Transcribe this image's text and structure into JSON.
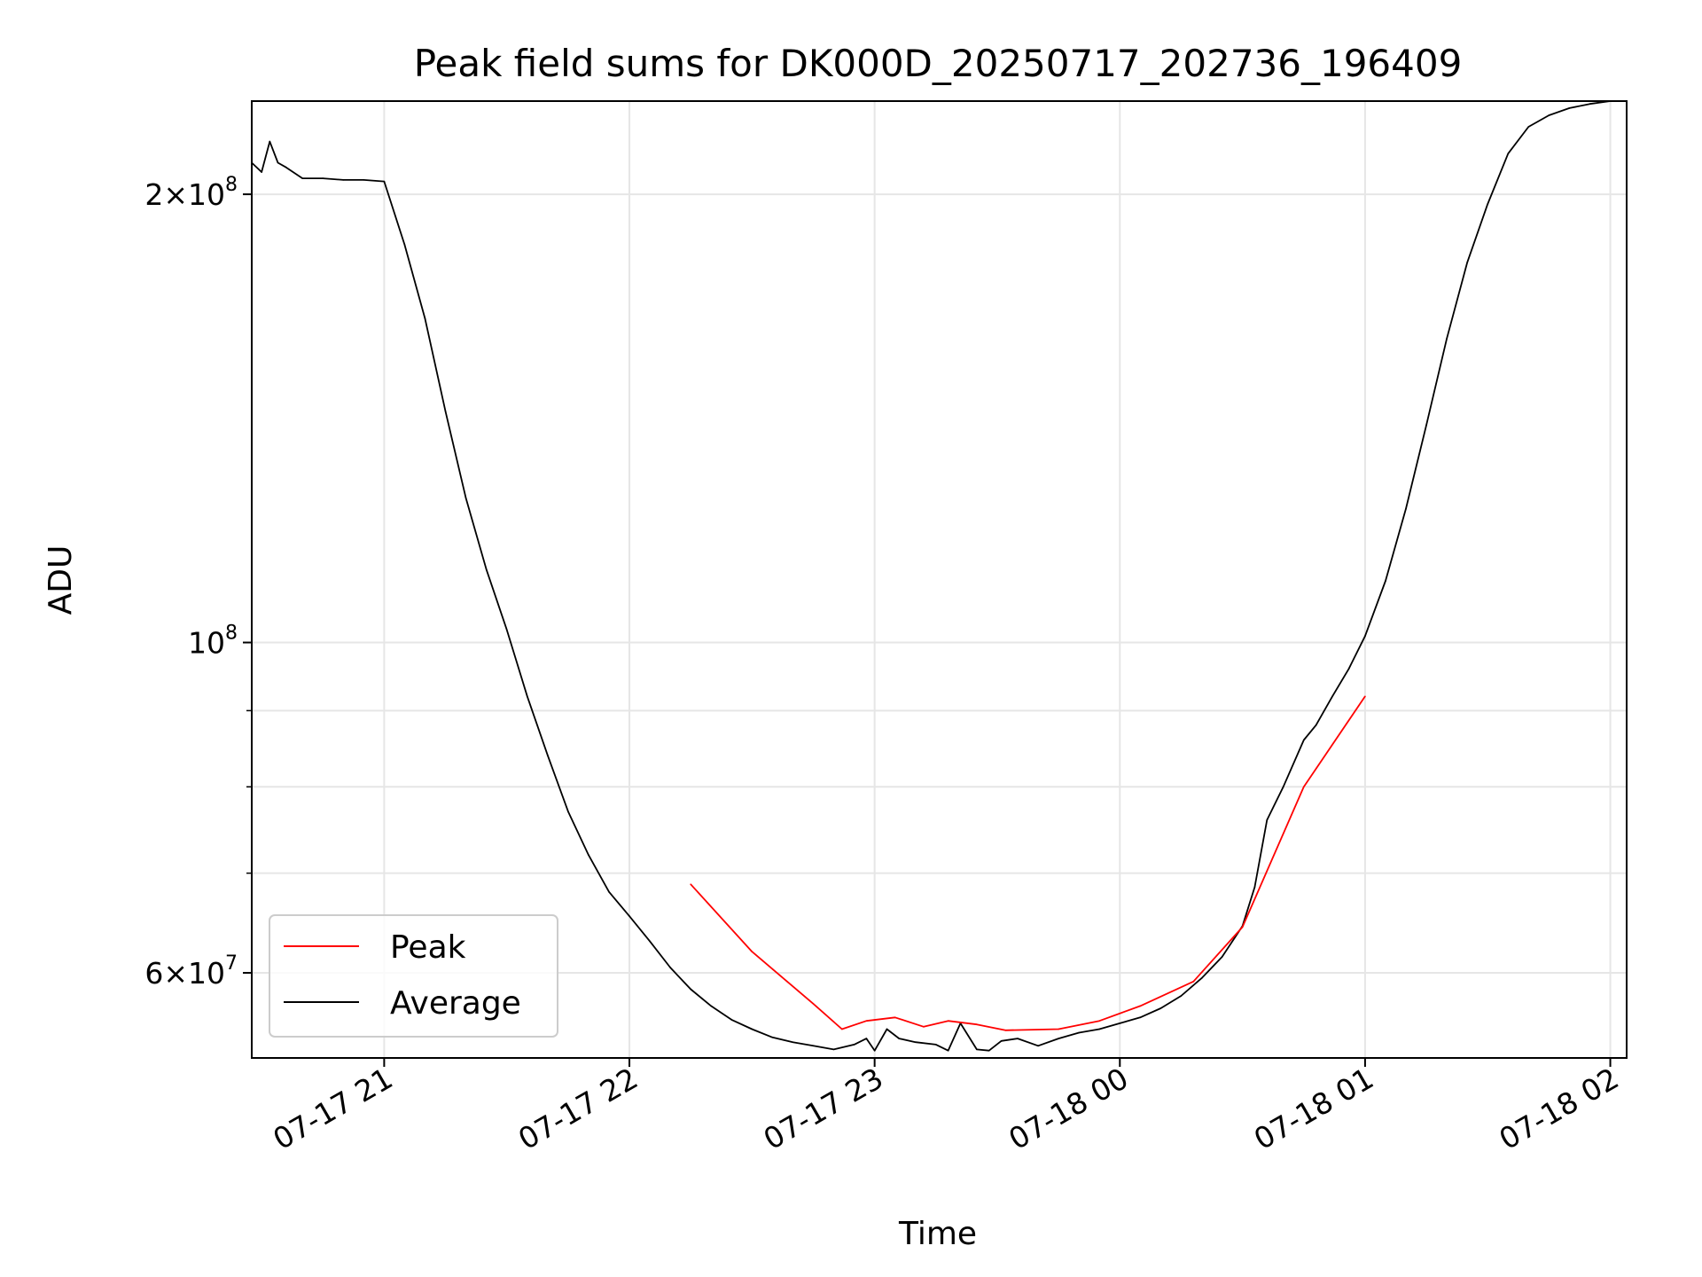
{
  "chart_data": {
    "type": "line",
    "title": "Peak field sums for DK000D_20250717_202736_196409",
    "xlabel": "Time",
    "ylabel": "ADU",
    "yscale": "log",
    "grid": true,
    "legend_position": "lower-left",
    "xlim": [
      "2025-07-17T20:27:36",
      "2025-07-18T02:04:00"
    ],
    "ylim": [
      52600000,
      231000000
    ],
    "x_ticks": [
      {
        "label": "07-17 21",
        "value": "2025-07-17T21:00"
      },
      {
        "label": "07-17 22",
        "value": "2025-07-17T22:00"
      },
      {
        "label": "07-17 23",
        "value": "2025-07-17T23:00"
      },
      {
        "label": "07-18 00",
        "value": "2025-07-18T00:00"
      },
      {
        "label": "07-18 01",
        "value": "2025-07-18T01:00"
      },
      {
        "label": "07-18 02",
        "value": "2025-07-18T02:00"
      }
    ],
    "y_major_ticks": [
      {
        "base": "6",
        "exp": "7",
        "value": 60000000
      },
      {
        "base": "",
        "exp": "8",
        "value": 100000000
      },
      {
        "base": "2",
        "exp": "8",
        "value": 200000000
      }
    ],
    "y_minor_ticks": [
      70000000,
      80000000,
      90000000
    ],
    "series": [
      {
        "name": "Peak",
        "color": "#ff0000",
        "x": [
          "2025-07-17T22:15",
          "2025-07-17T22:30",
          "2025-07-17T22:45",
          "2025-07-17T22:52",
          "2025-07-17T22:58",
          "2025-07-17T23:05",
          "2025-07-17T23:12",
          "2025-07-17T23:18",
          "2025-07-17T23:25",
          "2025-07-17T23:32",
          "2025-07-17T23:45",
          "2025-07-17T23:55",
          "2025-07-18T00:05",
          "2025-07-18T00:18",
          "2025-07-18T00:30",
          "2025-07-18T00:45",
          "2025-07-18T01:00"
        ],
        "values": [
          68800000,
          62000000,
          57200000,
          55000000,
          55700000,
          56000000,
          55200000,
          55700000,
          55400000,
          54900000,
          55000000,
          55700000,
          57000000,
          59200000,
          64400000,
          80000000,
          92000000
        ]
      },
      {
        "name": "Average",
        "color": "#000000",
        "x": [
          "2025-07-17T20:27:36",
          "2025-07-17T20:30",
          "2025-07-17T20:32",
          "2025-07-17T20:34",
          "2025-07-17T20:36",
          "2025-07-17T20:40",
          "2025-07-17T20:45",
          "2025-07-17T20:50",
          "2025-07-17T20:55",
          "2025-07-17T21:00",
          "2025-07-17T21:05",
          "2025-07-17T21:10",
          "2025-07-17T21:15",
          "2025-07-17T21:20",
          "2025-07-17T21:25",
          "2025-07-17T21:30",
          "2025-07-17T21:35",
          "2025-07-17T21:40",
          "2025-07-17T21:45",
          "2025-07-17T21:50",
          "2025-07-17T21:55",
          "2025-07-17T22:00",
          "2025-07-17T22:05",
          "2025-07-17T22:10",
          "2025-07-17T22:15",
          "2025-07-17T22:20",
          "2025-07-17T22:25",
          "2025-07-17T22:30",
          "2025-07-17T22:35",
          "2025-07-17T22:40",
          "2025-07-17T22:45",
          "2025-07-17T22:50",
          "2025-07-17T22:55",
          "2025-07-17T22:58",
          "2025-07-17T23:00",
          "2025-07-17T23:03",
          "2025-07-17T23:06",
          "2025-07-17T23:10",
          "2025-07-17T23:15",
          "2025-07-17T23:18",
          "2025-07-17T23:21",
          "2025-07-17T23:25",
          "2025-07-17T23:28",
          "2025-07-17T23:31",
          "2025-07-17T23:35",
          "2025-07-17T23:40",
          "2025-07-17T23:45",
          "2025-07-17T23:50",
          "2025-07-17T23:55",
          "2025-07-18T00:00",
          "2025-07-18T00:05",
          "2025-07-18T00:10",
          "2025-07-18T00:15",
          "2025-07-18T00:20",
          "2025-07-18T00:25",
          "2025-07-18T00:30",
          "2025-07-18T00:33",
          "2025-07-18T00:36",
          "2025-07-18T00:40",
          "2025-07-18T00:45",
          "2025-07-18T00:48",
          "2025-07-18T00:52",
          "2025-07-18T00:56",
          "2025-07-18T01:00",
          "2025-07-18T01:05",
          "2025-07-18T01:10",
          "2025-07-18T01:15",
          "2025-07-18T01:20",
          "2025-07-18T01:25",
          "2025-07-18T01:30",
          "2025-07-18T01:35",
          "2025-07-18T01:40",
          "2025-07-18T01:45",
          "2025-07-18T01:50",
          "2025-07-18T01:55",
          "2025-07-18T02:00",
          "2025-07-18T02:04"
        ],
        "values": [
          210000000,
          207000000,
          217000000,
          210000000,
          208500000,
          205000000,
          205000000,
          204500000,
          204500000,
          204000000,
          185000000,
          165000000,
          143000000,
          125000000,
          112000000,
          102000000,
          92000000,
          84000000,
          77000000,
          72000000,
          68000000,
          65500000,
          63000000,
          60500000,
          58500000,
          57000000,
          55800000,
          55000000,
          54300000,
          53900000,
          53600000,
          53300000,
          53700000,
          54200000,
          53200000,
          55000000,
          54200000,
          53900000,
          53700000,
          53200000,
          55500000,
          53300000,
          53200000,
          54000000,
          54200000,
          53600000,
          54200000,
          54700000,
          55000000,
          55500000,
          56000000,
          56800000,
          57900000,
          59500000,
          61500000,
          64500000,
          68500000,
          76000000,
          80000000,
          86000000,
          88000000,
          92000000,
          96000000,
          101000000,
          110000000,
          123000000,
          140000000,
          160000000,
          180000000,
          197000000,
          213000000,
          222000000,
          226000000,
          228500000,
          230000000,
          231000000,
          231000000
        ]
      }
    ]
  }
}
